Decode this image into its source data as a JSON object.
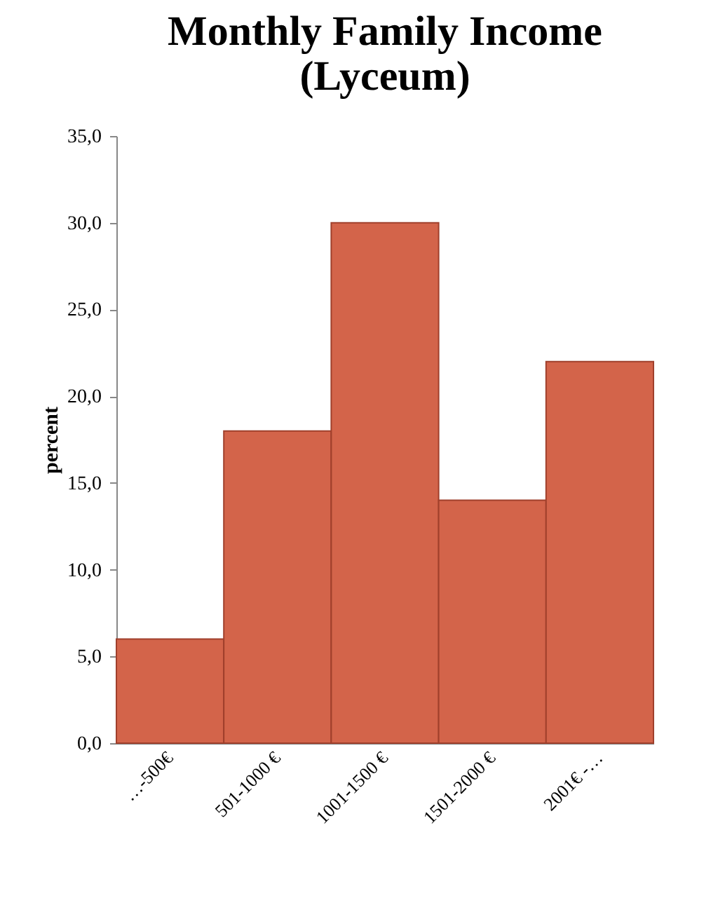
{
  "chart_data": {
    "type": "bar",
    "title": "Monthly Family Income\n(Lyceum)",
    "ylabel": "percent",
    "categories": [
      "…-500€",
      "501-1000 €",
      "1001-1500 €",
      "1501-2000 €",
      "2001€ -…"
    ],
    "values": [
      6,
      18,
      30,
      14,
      22
    ],
    "color": "#d3644a",
    "ylim": [
      0,
      35
    ],
    "yticks": [
      {
        "value": 0,
        "label": "0,0"
      },
      {
        "value": 5,
        "label": "5,0"
      },
      {
        "value": 10,
        "label": "10,0"
      },
      {
        "value": 15,
        "label": "15,0"
      },
      {
        "value": 20,
        "label": "20,0"
      },
      {
        "value": 25,
        "label": "25,0"
      },
      {
        "value": 30,
        "label": "30,0"
      },
      {
        "value": 35,
        "label": "35,0"
      }
    ],
    "grid": false
  }
}
